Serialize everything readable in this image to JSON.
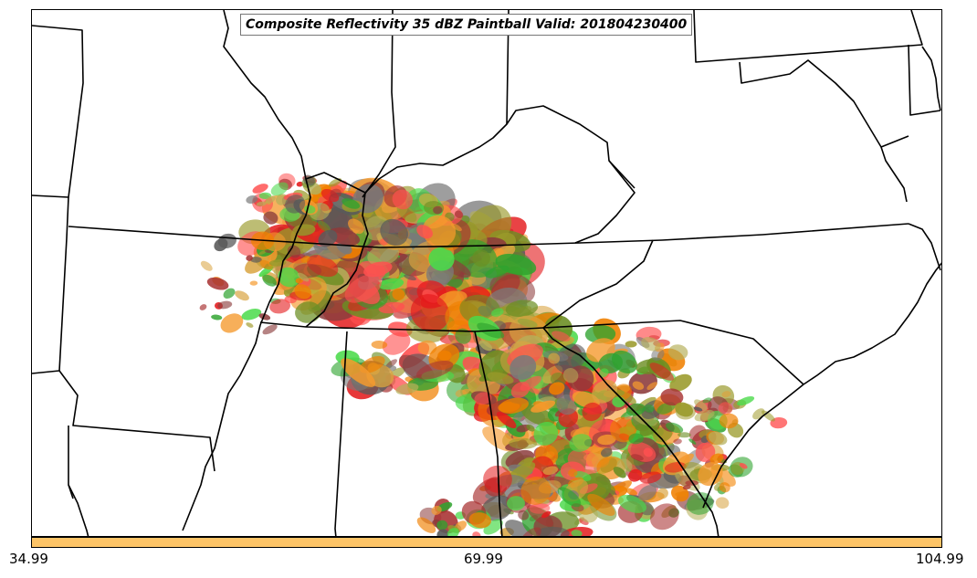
{
  "title": "Composite Reflectivity 35 dBZ Paintball Valid: 201804230400",
  "colorbar": {
    "color": "#FDC467",
    "ticks": [
      "34.99",
      "69.99",
      "104.99"
    ]
  },
  "member_colors": [
    "#F08000",
    "#F59A2E",
    "#E41A1C",
    "#FF5050",
    "#A83232",
    "#8C3C3C",
    "#6B8E23",
    "#9A9A2A",
    "#B5B05A",
    "#2EA32E",
    "#4ADA4A",
    "#5A5A5A",
    "#7A7A7A",
    "#D9A441"
  ],
  "legend_visible": false
}
